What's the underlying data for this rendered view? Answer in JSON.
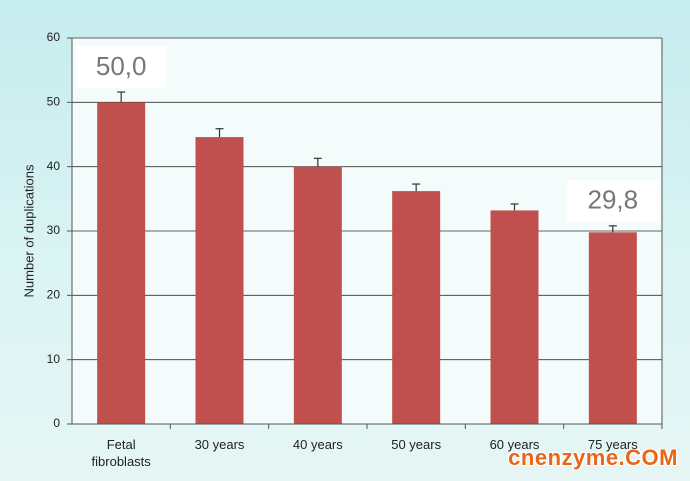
{
  "chart_data": {
    "type": "bar",
    "categories": [
      "Fetal fibroblasts",
      "30 years",
      "40 years",
      "50 years",
      "60 years",
      "75 years"
    ],
    "values": [
      50.0,
      44.6,
      40.0,
      36.2,
      33.2,
      29.8
    ],
    "errors": [
      1.6,
      1.3,
      1.3,
      1.1,
      1.0,
      1.0
    ],
    "value_labels": [
      "50,0",
      null,
      null,
      null,
      null,
      "29,8"
    ],
    "color": "#c0504d",
    "y_label": "Number of duplications",
    "ylim": [
      0,
      60
    ],
    "yticks": [
      0,
      10,
      20,
      30,
      40,
      50,
      60
    ],
    "grid": true
  },
  "watermark": "cnenzyme.COM"
}
